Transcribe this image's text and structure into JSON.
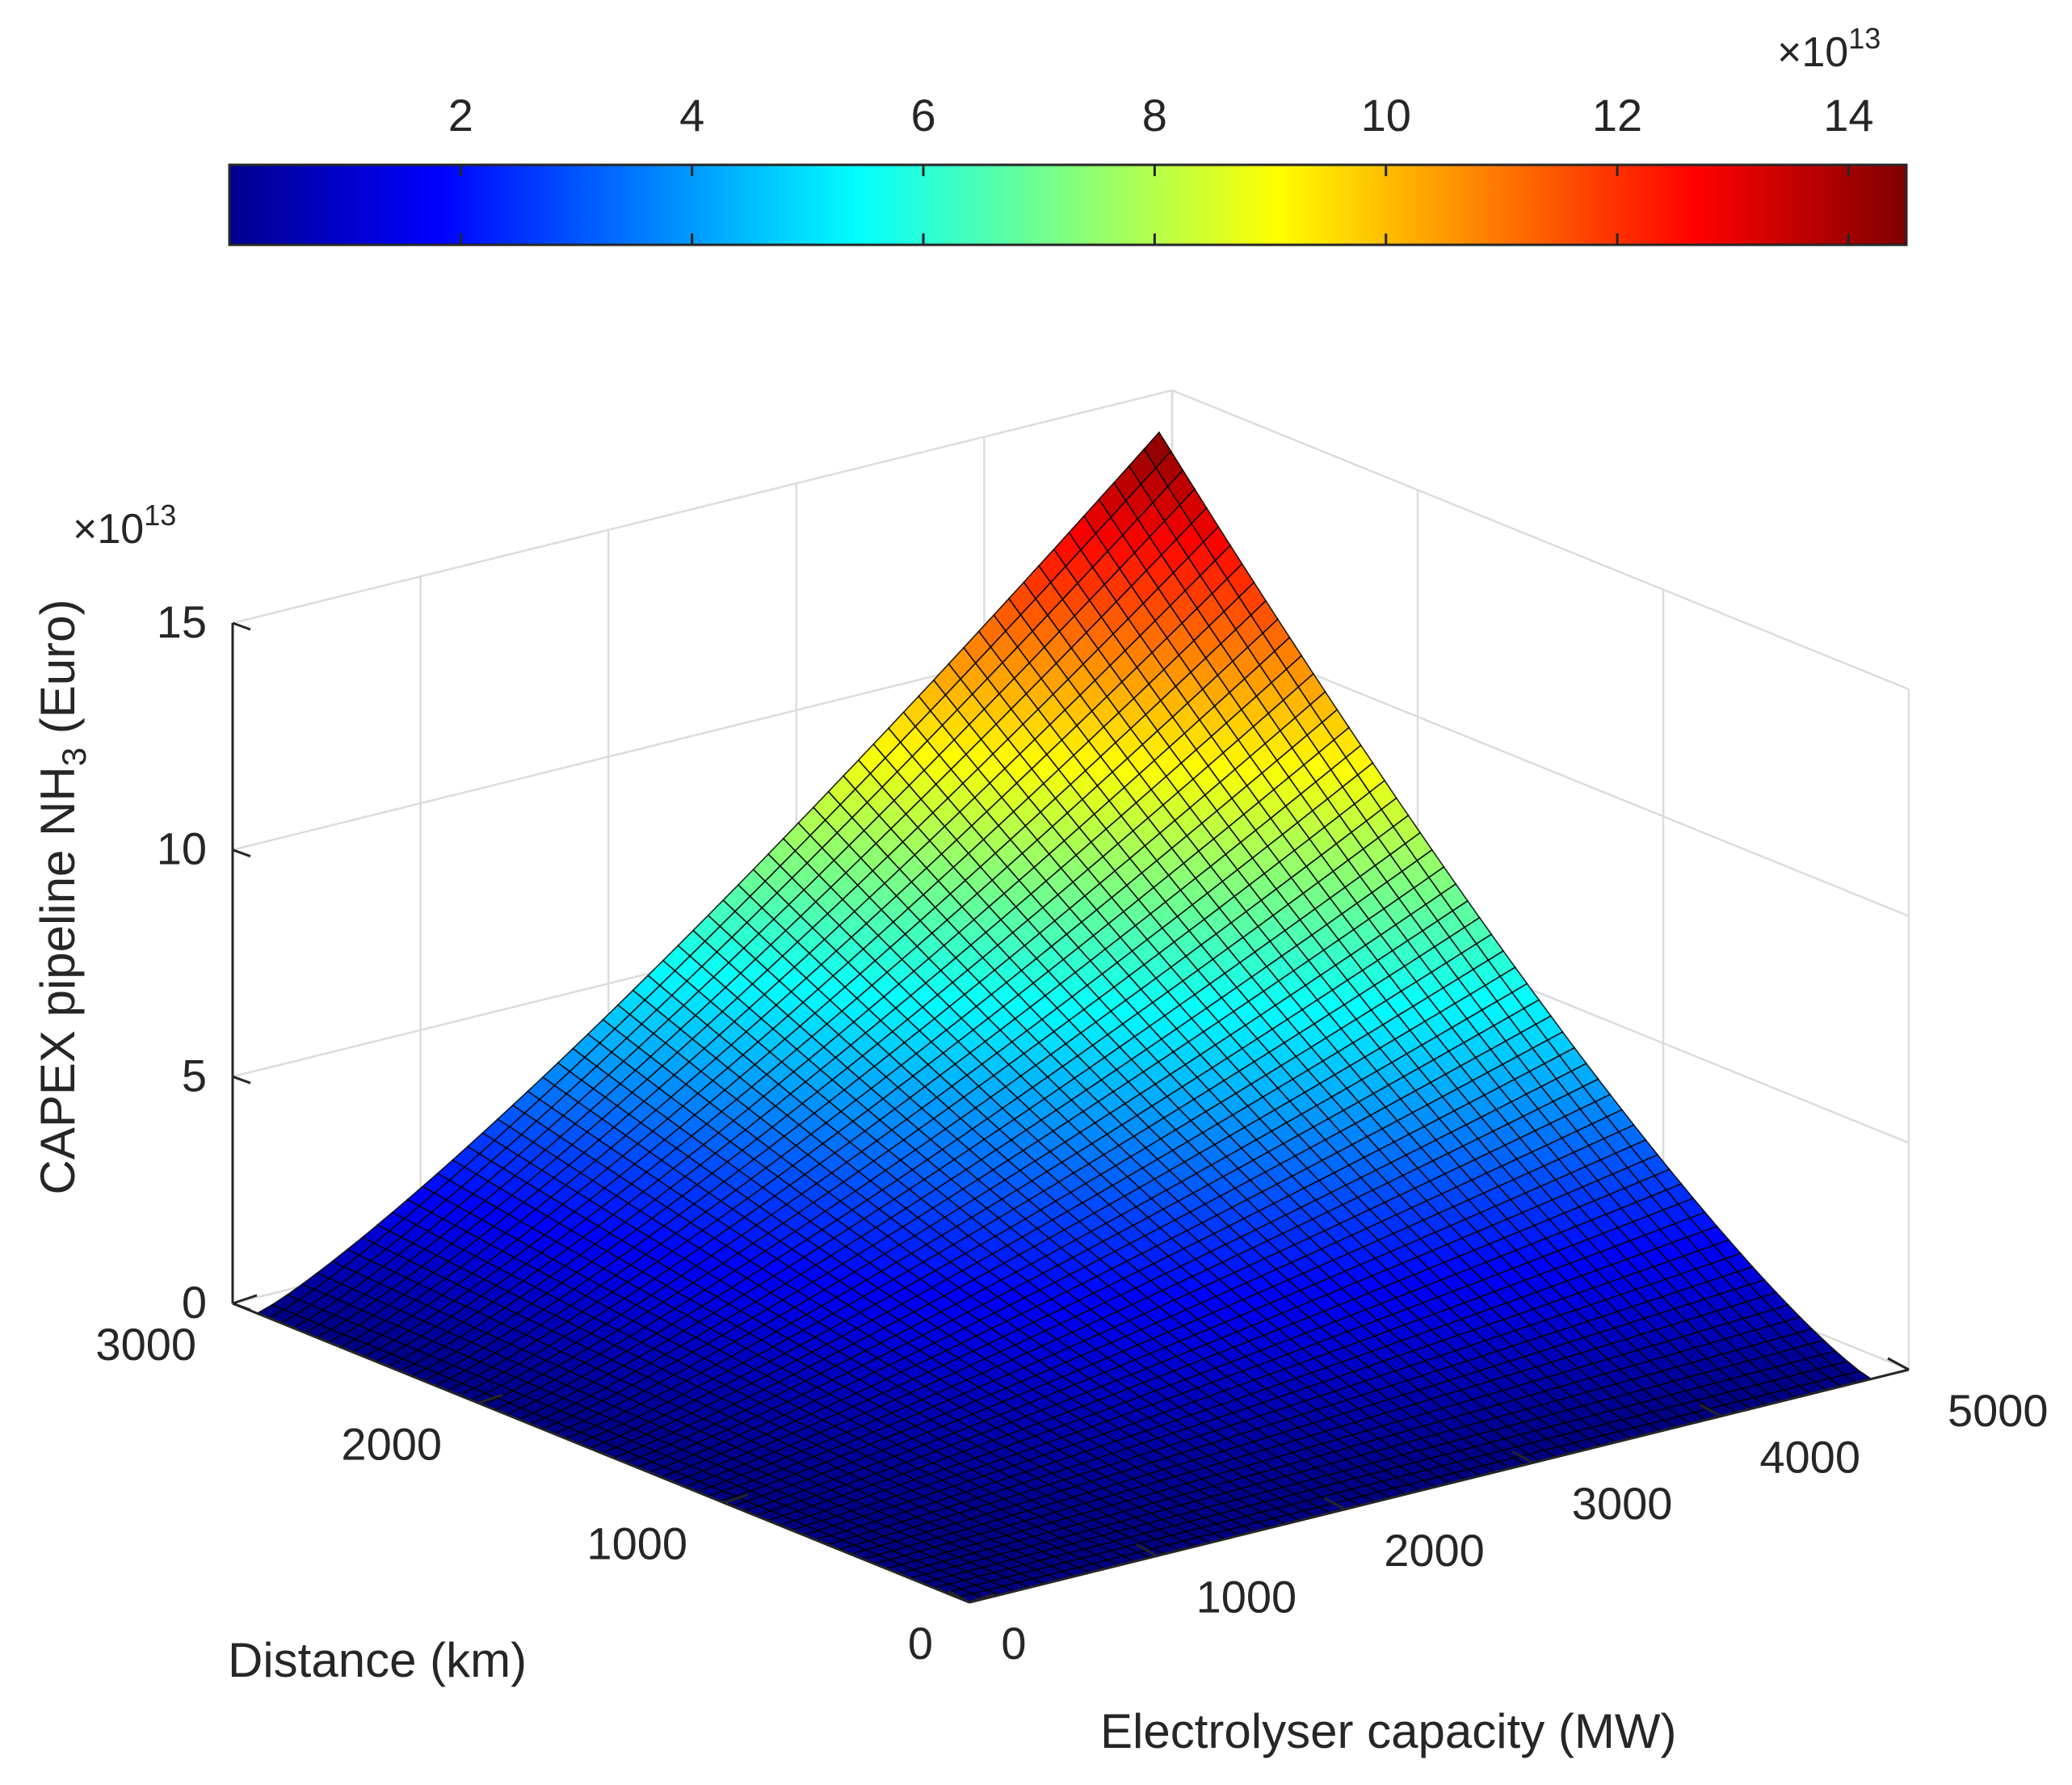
{
  "chart_data": {
    "type": "surface",
    "title": "",
    "xlabel": "Electrolyser capacity (MW)",
    "ylabel": "Distance (km)",
    "zlabel_main": "CAPEX pipeline NH",
    "zlabel_sub": "3",
    "zlabel_suffix": " (Euro)",
    "x_ticks": [
      "0",
      "1000",
      "2000",
      "3000",
      "4000",
      "5000"
    ],
    "y_ticks": [
      "0",
      "1000",
      "2000",
      "3000"
    ],
    "z_ticks": [
      "0",
      "5",
      "10",
      "15"
    ],
    "xlim": [
      0,
      5000
    ],
    "ylim": [
      0,
      3000
    ],
    "zlim": [
      0,
      15
    ],
    "z_multiplier_prefix": "×10",
    "z_multiplier_exponent": "13",
    "surface_function": "z = 14.5e13 * (x/4800)^1.2 * (y/2900)^1.3 approx.",
    "surface_x_range": [
      0,
      4800
    ],
    "surface_y_range": [
      0,
      2900
    ],
    "z_peak": 14.5,
    "colormap": "jet",
    "colorbar": {
      "location": "top",
      "ticks": [
        "2",
        "4",
        "6",
        "8",
        "10",
        "12",
        "14"
      ],
      "range": [
        0,
        14.5
      ],
      "multiplier_prefix": "×10",
      "multiplier_exponent": "13"
    }
  }
}
